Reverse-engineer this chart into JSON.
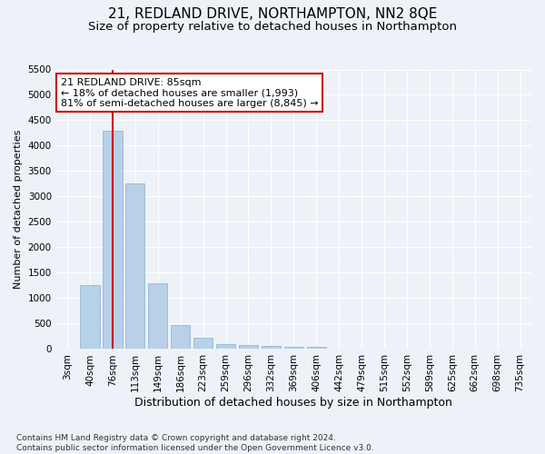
{
  "title1": "21, REDLAND DRIVE, NORTHAMPTON, NN2 8QE",
  "title2": "Size of property relative to detached houses in Northampton",
  "xlabel": "Distribution of detached houses by size in Northampton",
  "ylabel": "Number of detached properties",
  "categories": [
    "3sqm",
    "40sqm",
    "76sqm",
    "113sqm",
    "149sqm",
    "186sqm",
    "223sqm",
    "259sqm",
    "296sqm",
    "332sqm",
    "369sqm",
    "406sqm",
    "442sqm",
    "479sqm",
    "515sqm",
    "552sqm",
    "589sqm",
    "625sqm",
    "662sqm",
    "698sqm",
    "735sqm"
  ],
  "values": [
    0,
    1250,
    4300,
    3250,
    1300,
    480,
    230,
    100,
    80,
    65,
    50,
    50,
    10,
    10,
    5,
    5,
    0,
    0,
    0,
    0,
    0
  ],
  "bar_color": "#b8d0e8",
  "bar_edge_color": "#92b8d8",
  "redline_index": 2,
  "annotation_line1": "21 REDLAND DRIVE: 85sqm",
  "annotation_line2": "← 18% of detached houses are smaller (1,993)",
  "annotation_line3": "81% of semi-detached houses are larger (8,845) →",
  "annotation_box_facecolor": "#ffffff",
  "annotation_box_edgecolor": "#cc0000",
  "redline_color": "#cc0000",
  "ylim_max": 5500,
  "ytick_step": 500,
  "bg_color": "#eef2f8",
  "grid_color": "#ffffff",
  "title1_fontsize": 11,
  "title2_fontsize": 9.5,
  "xlabel_fontsize": 9,
  "ylabel_fontsize": 8,
  "tick_fontsize": 7.5,
  "annot_fontsize": 8,
  "footer_fontsize": 6.5,
  "footer": "Contains HM Land Registry data © Crown copyright and database right 2024.\nContains public sector information licensed under the Open Government Licence v3.0."
}
